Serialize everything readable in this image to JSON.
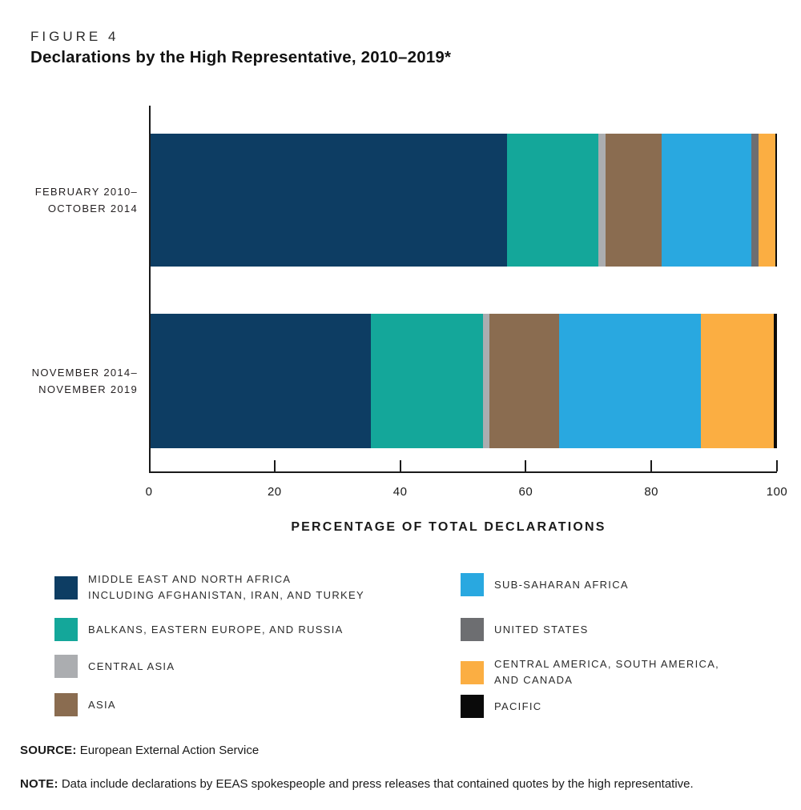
{
  "header": {
    "figure_label": "FIGURE 4",
    "title": "Declarations by the High Representative, 2010–2019*"
  },
  "chart_data": {
    "type": "bar",
    "orientation": "horizontal",
    "stacked": true,
    "title": "Declarations by the High Representative, 2010–2019*",
    "categories": [
      "FEBRUARY 2010–OCTOBER 2014",
      "NOVEMBER 2014–NOVEMBER 2019"
    ],
    "categories_lines": [
      [
        "FEBRUARY 2010–",
        "OCTOBER 2014"
      ],
      [
        "NOVEMBER 2014–",
        "NOVEMBER 2019"
      ]
    ],
    "xlabel": "PERCENTAGE OF TOTAL DECLARATIONS",
    "xlim": [
      0,
      100
    ],
    "xticks": [
      0,
      20,
      40,
      60,
      80,
      100
    ],
    "grid": false,
    "legend_position": "below",
    "series": [
      {
        "key": "mena",
        "name": "Middle East and North Africa including Afghanistan, Iran, and Turkey",
        "color": "#0d3d63",
        "values": [
          56.9,
          35.2
        ]
      },
      {
        "key": "balkans",
        "name": "Balkans, Eastern Europe, and Russia",
        "color": "#14a79a",
        "values": [
          14.6,
          17.9
        ]
      },
      {
        "key": "central-asia",
        "name": "Central Asia",
        "color": "#abadb0",
        "values": [
          1.1,
          1.0
        ]
      },
      {
        "key": "asia",
        "name": "Asia",
        "color": "#8a6c50",
        "values": [
          9.0,
          11.1
        ]
      },
      {
        "key": "sub-saharan-africa",
        "name": "Sub-Saharan Africa",
        "color": "#29a8e0",
        "values": [
          14.3,
          22.6
        ]
      },
      {
        "key": "united-states",
        "name": "United States",
        "color": "#6d6e71",
        "values": [
          1.1,
          0
        ]
      },
      {
        "key": "central-south-america-canada",
        "name": "Central America, South America, and Canada",
        "color": "#fbae42",
        "values": [
          2.7,
          11.7
        ]
      },
      {
        "key": "pacific",
        "name": "Pacific",
        "color": "#0a0a0a",
        "values": [
          0.3,
          0.5
        ]
      }
    ]
  },
  "legend": {
    "columns": [
      {
        "items": [
          {
            "key": "mena",
            "color": "#0d3d63",
            "lines": [
              "MIDDLE EAST AND NORTH AFRICA",
              "INCLUDING AFGHANISTAN, IRAN, AND TURKEY"
            ]
          },
          {
            "key": "balkans",
            "color": "#14a79a",
            "lines": [
              "BALKANS, EASTERN EUROPE, AND RUSSIA"
            ]
          },
          {
            "key": "central-asia",
            "color": "#abadb0",
            "lines": [
              "CENTRAL ASIA"
            ]
          },
          {
            "key": "asia",
            "color": "#8a6c50",
            "lines": [
              "ASIA"
            ]
          }
        ]
      },
      {
        "items": [
          {
            "key": "sub-saharan-africa",
            "color": "#29a8e0",
            "lines": [
              "SUB-SAHARAN AFRICA"
            ]
          },
          {
            "key": "united-states",
            "color": "#6d6e71",
            "lines": [
              "UNITED STATES"
            ]
          },
          {
            "key": "central-south-america-canada",
            "color": "#fbae42",
            "lines": [
              "CENTRAL AMERICA, SOUTH AMERICA,",
              "AND CANADA"
            ]
          },
          {
            "key": "pacific",
            "color": "#0a0a0a",
            "lines": [
              "PACIFIC"
            ]
          }
        ]
      }
    ]
  },
  "footer": {
    "source_label": "SOURCE:",
    "source_text": "European External Action Service",
    "note_label": "NOTE:",
    "note_text": "Data include declarations by EEAS spokespeople and press releases that contained quotes by the high representative."
  }
}
